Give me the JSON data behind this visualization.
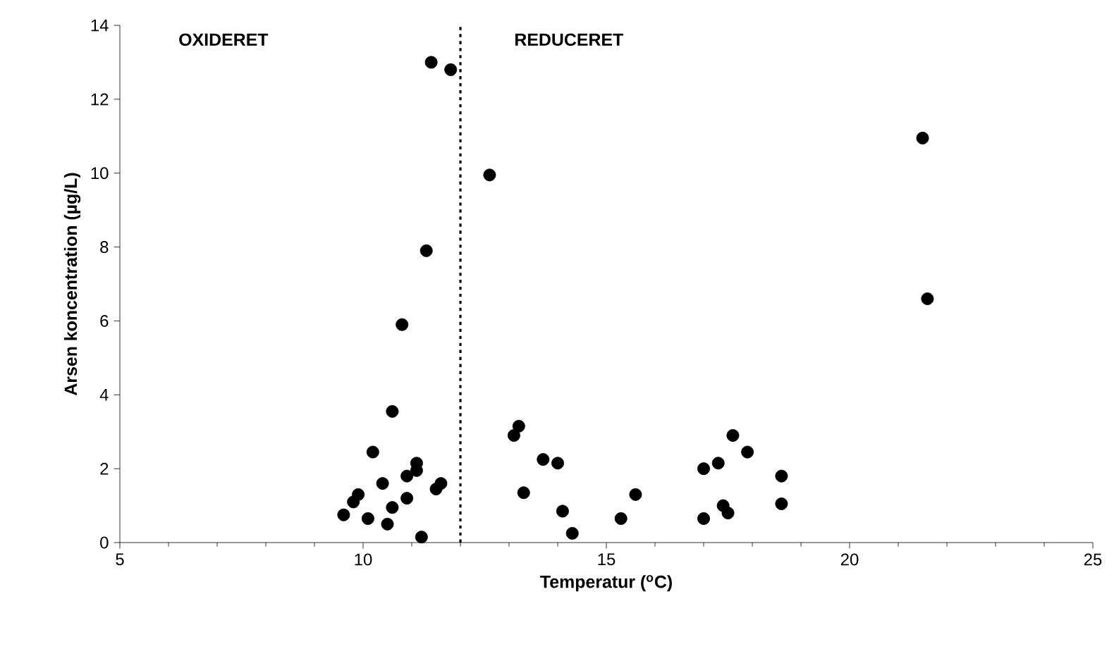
{
  "chart_data": {
    "type": "scatter",
    "xlabel": "Temperatur ($^{o}$C)",
    "ylabel": "Arsen koncentration (µg/L)",
    "x": [
      9.6,
      9.8,
      9.9,
      10.1,
      10.2,
      10.4,
      10.5,
      10.6,
      10.6,
      10.8,
      10.9,
      10.9,
      11.1,
      11.1,
      11.2,
      11.3,
      11.4,
      11.5,
      11.6,
      11.8,
      12.6,
      13.1,
      13.2,
      13.3,
      13.7,
      14.0,
      14.1,
      14.3,
      15.3,
      15.6,
      17.0,
      17.0,
      17.3,
      17.4,
      17.5,
      17.6,
      17.9,
      18.6,
      18.6,
      21.5,
      21.6
    ],
    "values": [
      0.75,
      1.1,
      1.3,
      0.65,
      2.45,
      1.6,
      0.5,
      3.55,
      0.95,
      5.9,
      1.2,
      1.8,
      2.15,
      1.95,
      0.15,
      7.9,
      13.0,
      1.45,
      1.6,
      12.8,
      9.95,
      2.9,
      3.15,
      1.35,
      2.25,
      2.15,
      0.85,
      0.25,
      0.65,
      1.3,
      2.0,
      0.65,
      2.15,
      1.0,
      0.8,
      2.9,
      2.45,
      1.8,
      1.05,
      10.95,
      6.6
    ],
    "color": "#000000",
    "marker": "circle",
    "xlim": [
      5,
      25
    ],
    "xticks": [
      5,
      10,
      15,
      20,
      25
    ],
    "ylim": [
      0,
      14
    ],
    "yticks": [
      0,
      2,
      4,
      6,
      8,
      10,
      12,
      14
    ],
    "grid": false,
    "ref_lines": [
      {
        "axis": "x",
        "value": 12,
        "line_style": "dotted",
        "color": "#000000"
      }
    ],
    "annotations": [
      "OXIDERET",
      "REDUCERET"
    ]
  }
}
